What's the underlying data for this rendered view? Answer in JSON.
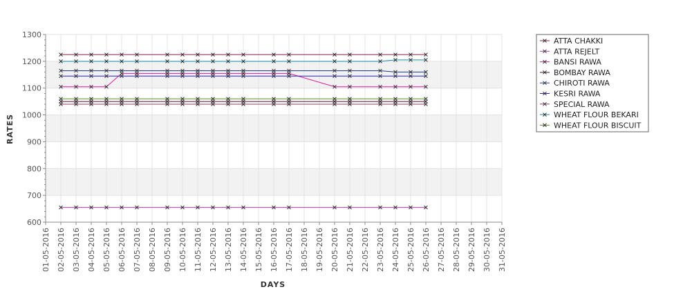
{
  "chart_data": {
    "type": "line",
    "xlabel": "DAYS",
    "ylabel": "RATES",
    "ylim": [
      600,
      1300
    ],
    "yticks": [
      600,
      700,
      800,
      900,
      1000,
      1100,
      1200,
      1300
    ],
    "categories": [
      "01-05-2016",
      "02-05-2016",
      "03-05-2016",
      "04-05-2016",
      "05-05-2016",
      "06-05-2016",
      "07-05-2016",
      "08-05-2016",
      "09-05-2016",
      "10-05-2016",
      "11-05-2016",
      "12-05-2016",
      "13-05-2016",
      "14-05-2016",
      "15-05-2016",
      "16-05-2016",
      "17-05-2016",
      "18-05-2016",
      "19-05-2016",
      "20-05-2016",
      "21-05-2016",
      "22-05-2016",
      "23-05-2016",
      "24-05-2016",
      "25-05-2016",
      "26-05-2016",
      "27-05-2016",
      "28-05-2016",
      "29-05-2016",
      "30-05-2016",
      "31-05-2016"
    ],
    "legend_position": "right",
    "grid": true,
    "series": [
      {
        "name": "ATTA CHAKKI",
        "color": "#8b1a4a",
        "x": [
          "02-05-2016",
          "03-05-2016",
          "04-05-2016",
          "05-05-2016",
          "06-05-2016",
          "07-05-2016",
          "09-05-2016",
          "10-05-2016",
          "11-05-2016",
          "12-05-2016",
          "13-05-2016",
          "14-05-2016",
          "16-05-2016",
          "17-05-2016",
          "20-05-2016",
          "21-05-2016",
          "23-05-2016",
          "24-05-2016",
          "25-05-2016",
          "26-05-2016"
        ],
        "values": [
          1225,
          1225,
          1225,
          1225,
          1225,
          1225,
          1225,
          1225,
          1225,
          1225,
          1225,
          1225,
          1225,
          1225,
          1225,
          1225,
          1225,
          1225,
          1225,
          1225
        ]
      },
      {
        "name": "ATTA REJELT",
        "color": "#b03ab0",
        "x": [
          "02-05-2016",
          "03-05-2016",
          "04-05-2016",
          "05-05-2016",
          "06-05-2016",
          "07-05-2016",
          "09-05-2016",
          "10-05-2016",
          "11-05-2016",
          "12-05-2016",
          "13-05-2016",
          "14-05-2016",
          "16-05-2016",
          "17-05-2016",
          "20-05-2016",
          "21-05-2016",
          "23-05-2016",
          "24-05-2016",
          "25-05-2016",
          "26-05-2016"
        ],
        "values": [
          655,
          655,
          655,
          655,
          655,
          655,
          655,
          655,
          655,
          655,
          655,
          655,
          655,
          655,
          655,
          655,
          655,
          655,
          655,
          655
        ]
      },
      {
        "name": "BANSI RAWA",
        "color": "#e0199b",
        "x": [
          "02-05-2016",
          "03-05-2016",
          "04-05-2016",
          "05-05-2016",
          "06-05-2016",
          "07-05-2016",
          "09-05-2016",
          "10-05-2016",
          "11-05-2016",
          "12-05-2016",
          "13-05-2016",
          "14-05-2016",
          "16-05-2016",
          "17-05-2016",
          "20-05-2016",
          "21-05-2016",
          "23-05-2016",
          "24-05-2016",
          "25-05-2016",
          "26-05-2016"
        ],
        "values": [
          1105,
          1105,
          1105,
          1105,
          1155,
          1155,
          1155,
          1155,
          1155,
          1155,
          1155,
          1155,
          1155,
          1155,
          1105,
          1105,
          1105,
          1105,
          1105,
          1105
        ]
      },
      {
        "name": "BOMBAY RAWA",
        "color": "#4a0f2a",
        "x": [
          "02-05-2016",
          "03-05-2016",
          "04-05-2016",
          "05-05-2016",
          "06-05-2016",
          "07-05-2016",
          "09-05-2016",
          "10-05-2016",
          "11-05-2016",
          "12-05-2016",
          "13-05-2016",
          "14-05-2016",
          "16-05-2016",
          "17-05-2016",
          "20-05-2016",
          "21-05-2016",
          "23-05-2016",
          "24-05-2016",
          "25-05-2016",
          "26-05-2016"
        ],
        "values": [
          1050,
          1050,
          1050,
          1050,
          1050,
          1050,
          1050,
          1050,
          1050,
          1050,
          1050,
          1050,
          1050,
          1050,
          1050,
          1050,
          1050,
          1050,
          1050,
          1050
        ]
      },
      {
        "name": "CHIROTI RAWA",
        "color": "#1a3a8b",
        "x": [
          "02-05-2016",
          "03-05-2016",
          "04-05-2016",
          "05-05-2016",
          "06-05-2016",
          "07-05-2016",
          "09-05-2016",
          "10-05-2016",
          "11-05-2016",
          "12-05-2016",
          "13-05-2016",
          "14-05-2016",
          "16-05-2016",
          "17-05-2016",
          "20-05-2016",
          "21-05-2016",
          "23-05-2016",
          "24-05-2016",
          "25-05-2016",
          "26-05-2016"
        ],
        "values": [
          1165,
          1165,
          1165,
          1165,
          1165,
          1165,
          1165,
          1165,
          1165,
          1165,
          1165,
          1165,
          1165,
          1165,
          1165,
          1165,
          1165,
          1160,
          1160,
          1160
        ]
      },
      {
        "name": "KESRI RAWA",
        "color": "#2222cc",
        "x": [
          "02-05-2016",
          "03-05-2016",
          "04-05-2016",
          "05-05-2016",
          "06-05-2016",
          "07-05-2016",
          "09-05-2016",
          "10-05-2016",
          "11-05-2016",
          "12-05-2016",
          "13-05-2016",
          "14-05-2016",
          "16-05-2016",
          "17-05-2016",
          "20-05-2016",
          "21-05-2016",
          "23-05-2016",
          "24-05-2016",
          "25-05-2016",
          "26-05-2016"
        ],
        "values": [
          1145,
          1145,
          1145,
          1145,
          1145,
          1145,
          1145,
          1145,
          1145,
          1145,
          1145,
          1145,
          1145,
          1145,
          1145,
          1145,
          1145,
          1145,
          1145,
          1145
        ]
      },
      {
        "name": "SPECIAL RAWA",
        "color": "#8b3a6a",
        "x": [
          "02-05-2016",
          "03-05-2016",
          "04-05-2016",
          "05-05-2016",
          "06-05-2016",
          "07-05-2016",
          "09-05-2016",
          "10-05-2016",
          "11-05-2016",
          "12-05-2016",
          "13-05-2016",
          "14-05-2016",
          "16-05-2016",
          "17-05-2016",
          "20-05-2016",
          "21-05-2016",
          "23-05-2016",
          "24-05-2016",
          "25-05-2016",
          "26-05-2016"
        ],
        "values": [
          1040,
          1040,
          1040,
          1040,
          1040,
          1040,
          1040,
          1040,
          1040,
          1040,
          1040,
          1040,
          1040,
          1040,
          1040,
          1040,
          1040,
          1040,
          1040,
          1040
        ]
      },
      {
        "name": "WHEAT FLOUR BEKARI",
        "color": "#1a8baa",
        "x": [
          "02-05-2016",
          "03-05-2016",
          "04-05-2016",
          "05-05-2016",
          "06-05-2016",
          "07-05-2016",
          "09-05-2016",
          "10-05-2016",
          "11-05-2016",
          "12-05-2016",
          "13-05-2016",
          "14-05-2016",
          "16-05-2016",
          "17-05-2016",
          "20-05-2016",
          "21-05-2016",
          "23-05-2016",
          "24-05-2016",
          "25-05-2016",
          "26-05-2016"
        ],
        "values": [
          1200,
          1200,
          1200,
          1200,
          1200,
          1200,
          1200,
          1200,
          1200,
          1200,
          1200,
          1200,
          1200,
          1200,
          1200,
          1200,
          1200,
          1205,
          1205,
          1205
        ]
      },
      {
        "name": "WHEAT FLOUR BISCUIT",
        "color": "#5a8a1a",
        "x": [
          "02-05-2016",
          "03-05-2016",
          "04-05-2016",
          "05-05-2016",
          "06-05-2016",
          "07-05-2016",
          "09-05-2016",
          "10-05-2016",
          "11-05-2016",
          "12-05-2016",
          "13-05-2016",
          "14-05-2016",
          "16-05-2016",
          "17-05-2016",
          "20-05-2016",
          "21-05-2016",
          "23-05-2016",
          "24-05-2016",
          "25-05-2016",
          "26-05-2016"
        ],
        "values": [
          1060,
          1060,
          1060,
          1060,
          1060,
          1060,
          1060,
          1060,
          1060,
          1060,
          1060,
          1060,
          1060,
          1060,
          1060,
          1060,
          1060,
          1060,
          1060,
          1060
        ]
      }
    ]
  }
}
